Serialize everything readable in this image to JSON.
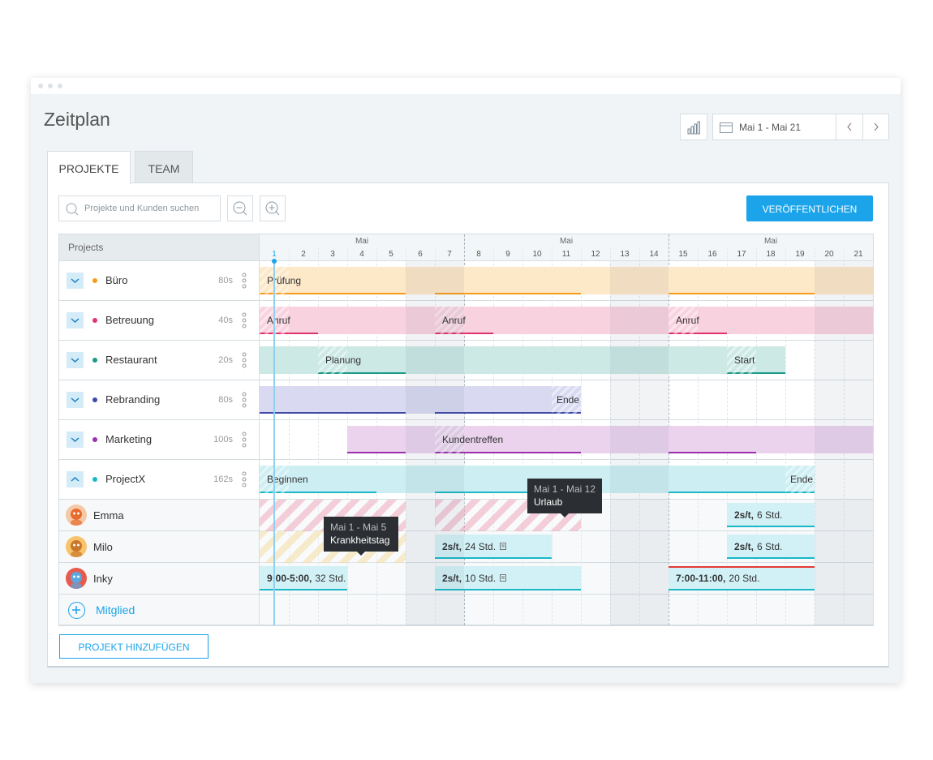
{
  "window": {
    "title": "Zeitplan",
    "date_range": "Mai 1 - Mai 21"
  },
  "tabs": [
    "PROJEKTE",
    "TEAM"
  ],
  "toolbar": {
    "search_placeholder": "Projekte und Kunden suchen",
    "publish": "VERÖFFENTLICHEN"
  },
  "grid": {
    "header": "Projects",
    "months": [
      "Mai",
      "Mai",
      "Mai"
    ],
    "days": [
      1,
      2,
      3,
      4,
      5,
      6,
      7,
      8,
      9,
      10,
      11,
      12,
      13,
      14,
      15,
      16,
      17,
      18,
      19,
      20,
      21
    ]
  },
  "projects": [
    {
      "name": "Büro",
      "hours": "80s",
      "tasks": [
        "Prüfung"
      ]
    },
    {
      "name": "Betreuung",
      "hours": "40s",
      "tasks": [
        "Anruf",
        "Anruf",
        "Anruf"
      ]
    },
    {
      "name": "Restaurant",
      "hours": "20s",
      "tasks": [
        "Planung",
        "Start"
      ]
    },
    {
      "name": "Rebranding",
      "hours": "80s",
      "tasks": [
        "Ende"
      ]
    },
    {
      "name": "Marketing",
      "hours": "100s",
      "tasks": [
        "Kundentreffen"
      ]
    },
    {
      "name": "ProjectX",
      "hours": "162s",
      "tasks": [
        "Beginnen",
        "Ende"
      ]
    }
  ],
  "members": [
    {
      "name": "Emma",
      "entries": [
        {
          "bold": "2s/t,",
          "rest": "6 Std."
        }
      ]
    },
    {
      "name": "Milo",
      "entries": [
        {
          "bold": "2s/t,",
          "rest": "24 Std."
        },
        {
          "bold": "2s/t,",
          "rest": "6 Std."
        }
      ]
    },
    {
      "name": "Inky",
      "entries": [
        {
          "bold": "9:00-5:00,",
          "rest": "32 Std."
        },
        {
          "bold": "2s/t,",
          "rest": "10 Std."
        },
        {
          "bold": "7:00-11:00,",
          "rest": "20 Std."
        }
      ]
    }
  ],
  "tooltips": [
    {
      "range": "Mai 1 - Mai 12",
      "label": "Urlaub"
    },
    {
      "range": "Mai 1 - Mai 5",
      "label": "Krankheitstag"
    }
  ],
  "add_member": "Mitglied",
  "add_project": "PROJEKT HINZUFÜGEN"
}
